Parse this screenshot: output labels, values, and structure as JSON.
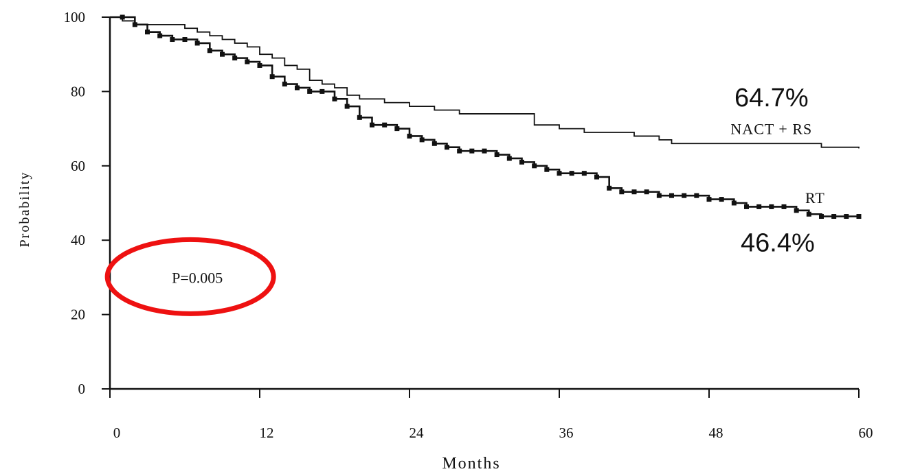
{
  "chart_data": {
    "type": "line",
    "xlabel": "Months",
    "ylabel": "Probability",
    "xlim": [
      0,
      60
    ],
    "ylim": [
      0,
      100
    ],
    "xticks": [
      0,
      12,
      24,
      36,
      48,
      60
    ],
    "yticks": [
      0,
      20,
      40,
      60,
      80,
      100
    ],
    "grid": false,
    "series": [
      {
        "name": "NACT + RS",
        "style": "step line",
        "color": "#111111",
        "x": [
          0,
          1,
          2,
          5,
          6,
          7,
          8,
          9,
          10,
          11,
          12,
          13,
          14,
          15,
          16,
          17,
          18,
          19,
          20,
          22,
          24,
          26,
          28,
          32,
          34,
          36,
          38,
          42,
          44,
          45,
          56,
          57,
          60
        ],
        "y": [
          100,
          99,
          98,
          98,
          97,
          96,
          95,
          94,
          93,
          92,
          90,
          89,
          87,
          86,
          83,
          82,
          81,
          79,
          78,
          77,
          76,
          75,
          74,
          74,
          71,
          70,
          69,
          68,
          67,
          66,
          66,
          65,
          64.7
        ]
      },
      {
        "name": "RT",
        "style": "step line with square markers",
        "color": "#111111",
        "x": [
          0,
          1,
          2,
          3,
          4,
          5,
          6,
          7,
          8,
          9,
          10,
          11,
          12,
          13,
          14,
          15,
          16,
          17,
          18,
          19,
          20,
          21,
          22,
          23,
          24,
          25,
          26,
          27,
          28,
          29,
          30,
          31,
          32,
          33,
          34,
          35,
          36,
          37,
          38,
          39,
          40,
          41,
          42,
          43,
          44,
          45,
          46,
          47,
          48,
          49,
          50,
          51,
          52,
          53,
          54,
          55,
          56,
          57,
          58,
          59,
          60
        ],
        "y": [
          100,
          100,
          98,
          96,
          95,
          94,
          94,
          93,
          91,
          90,
          89,
          88,
          87,
          84,
          82,
          81,
          80,
          80,
          78,
          76,
          73,
          71,
          71,
          70,
          68,
          67,
          66,
          65,
          64,
          64,
          64,
          63,
          62,
          61,
          60,
          59,
          58,
          58,
          58,
          57,
          54,
          53,
          53,
          53,
          52,
          52,
          52,
          52,
          51,
          51,
          50,
          49,
          49,
          49,
          49,
          48,
          47,
          46.4,
          46.4,
          46.4,
          46.4
        ]
      }
    ],
    "annotations": [
      {
        "id": "pvalue",
        "text": "P=0.005",
        "x": 7,
        "y": 30,
        "circled": true,
        "circle_color": "#ee1111"
      },
      {
        "id": "nact_pct",
        "text": "64.7%",
        "x": 53,
        "y": 76
      },
      {
        "id": "rt_pct",
        "text": "46.4%",
        "x": 53.5,
        "y": 37
      },
      {
        "id": "nact_label",
        "text": "NACT + RS",
        "x": 53,
        "y": 68.5
      },
      {
        "id": "rt_label",
        "text": "RT",
        "x": 56.5,
        "y": 50
      }
    ]
  }
}
